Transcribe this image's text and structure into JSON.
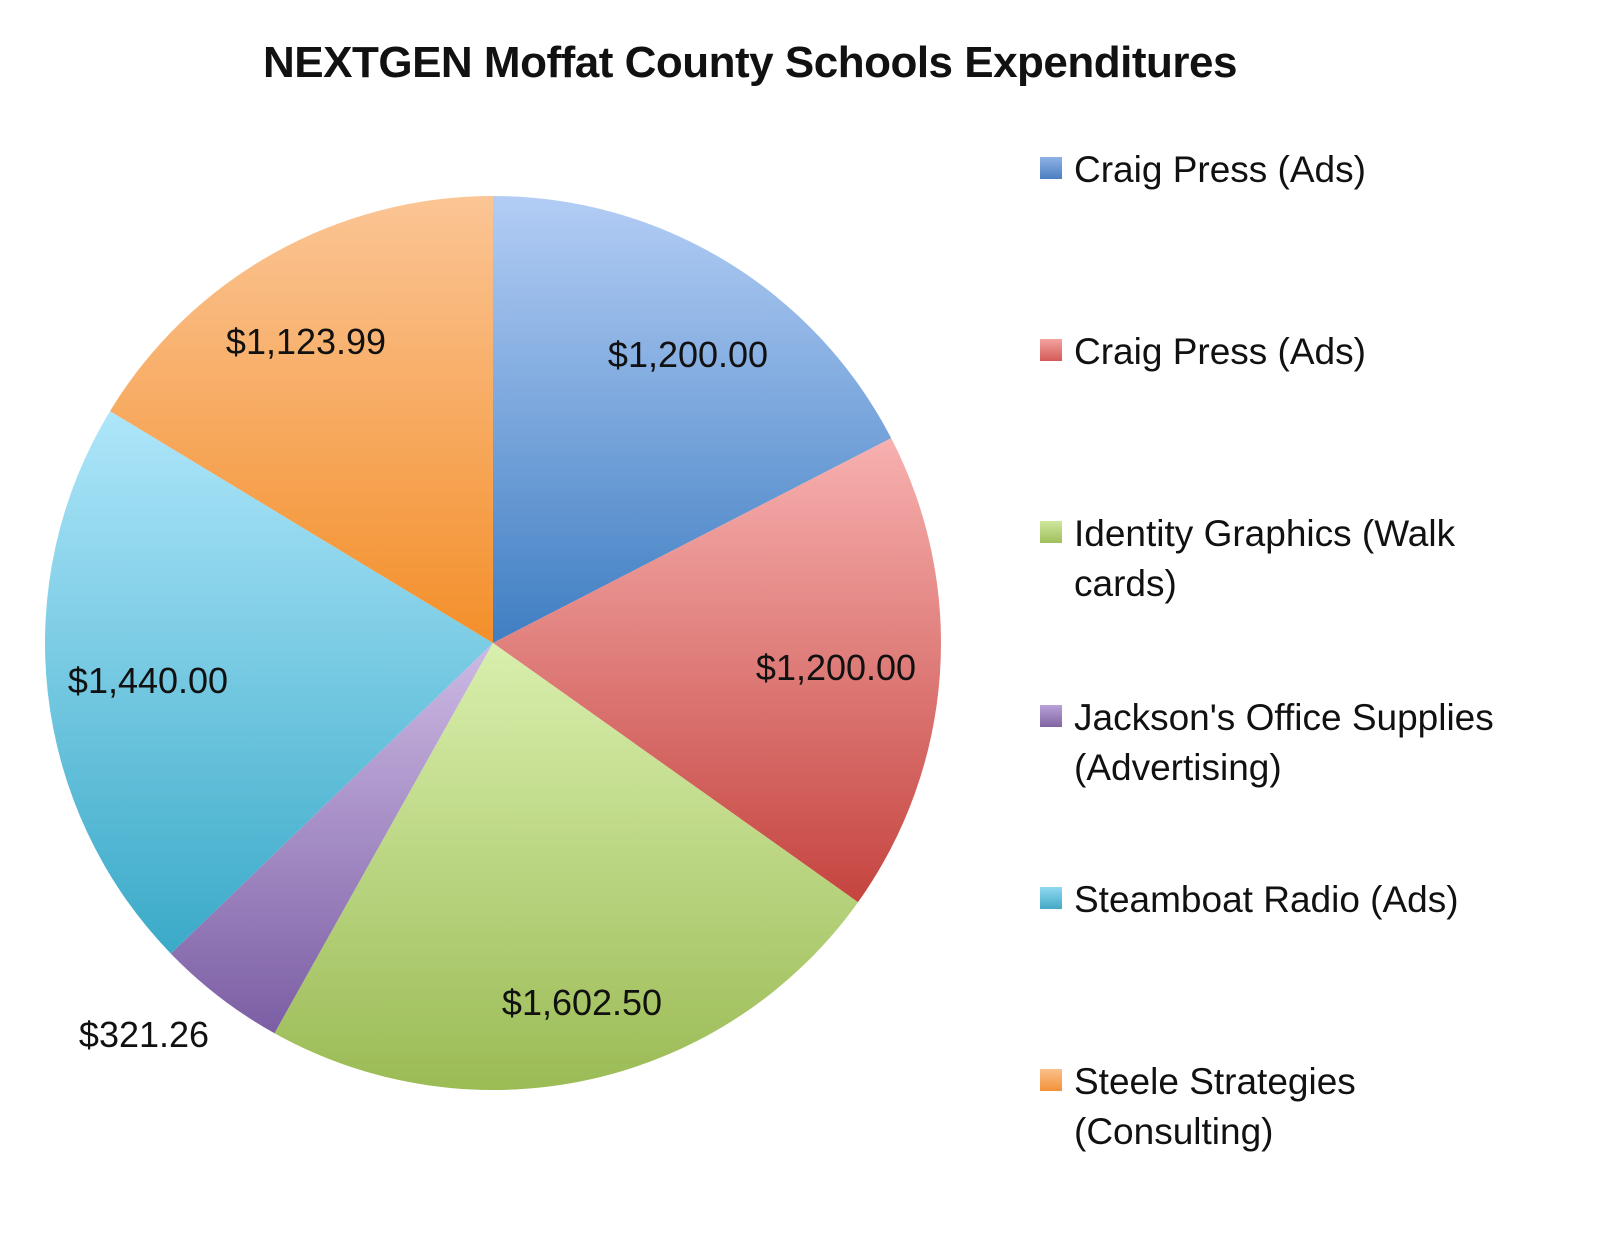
{
  "chart_data": {
    "type": "pie",
    "title": "NEXTGEN Moffat County Schools Expenditures",
    "categories": [
      "Craig Press (Ads)",
      "Craig Press (Ads)",
      "Identity Graphics (Walk cards)",
      "Jackson's Office Supplies (Advertising)",
      "Steamboat Radio (Ads)",
      "Steele Strategies (Consulting)"
    ],
    "values": [
      1200.0,
      1200.0,
      1602.5,
      321.26,
      1440.0,
      1123.99
    ],
    "data_labels": [
      "$1,200.00",
      "$1,200.00",
      "$1,602.50",
      "$321.26",
      "$1,440.00",
      "$1,123.99"
    ],
    "colors": [
      "#4f81bd",
      "#c0504d",
      "#9bbb59",
      "#8064a2",
      "#4bacc6",
      "#f79646"
    ],
    "legend_position": "right",
    "start_angle": "12 o'clock, clockwise"
  },
  "title": "NEXTGEN Moffat County Schools Expenditures",
  "legend": [
    {
      "label": "Craig Press (Ads)",
      "color": "#4f81bd"
    },
    {
      "label": "Craig Press (Ads)",
      "color": "#c0504d"
    },
    {
      "label": "Identity Graphics (Walk cards)",
      "color": "#9bbb59"
    },
    {
      "label": "Jackson's Office Supplies (Advertising)",
      "color": "#8064a2"
    },
    {
      "label": "Steamboat Radio (Ads)",
      "color": "#4bacc6"
    },
    {
      "label": "Steele Strategies (Consulting)",
      "color": "#f79646"
    }
  ],
  "labels": {
    "craig_press_1": "$1,200.00",
    "craig_press_2": "$1,200.00",
    "identity_graphics": "$1,602.50",
    "jacksons": "$321.26",
    "steamboat": "$1,440.00",
    "steele": "$1,123.99"
  }
}
